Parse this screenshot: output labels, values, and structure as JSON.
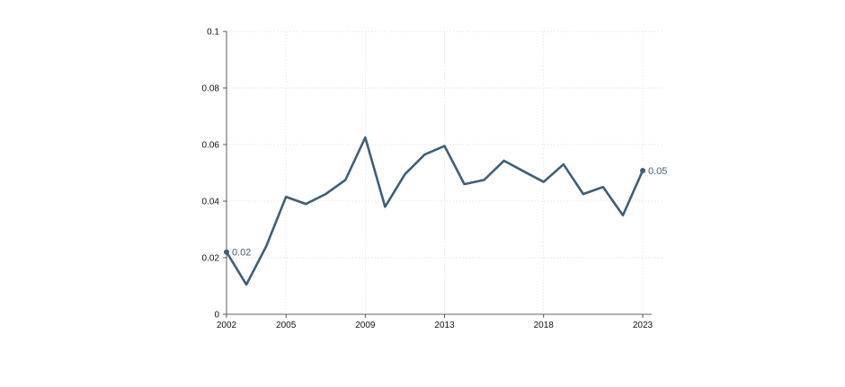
{
  "chart_data": {
    "type": "line",
    "title": "",
    "xlabel": "",
    "ylabel": "",
    "xlim": [
      2002,
      2023
    ],
    "ylim": [
      0,
      0.1
    ],
    "grid": true,
    "legend": "none",
    "x_ticks": [
      2002,
      2005,
      2009,
      2013,
      2018,
      2023
    ],
    "x_tick_labels": [
      "2002",
      "2005",
      "2009",
      "2013",
      "2018",
      "2023"
    ],
    "y_ticks": [
      0,
      0.02,
      0.04,
      0.06,
      0.08,
      0.1
    ],
    "y_tick_labels": [
      "0",
      "0.02",
      "0.04",
      "0.06",
      "0.08",
      "0.1"
    ],
    "series": [
      {
        "color": "#3d5f78",
        "x": [
          2002,
          2003,
          2004,
          2005,
          2006,
          2007,
          2008,
          2009,
          2010,
          2011,
          2012,
          2013,
          2014,
          2015,
          2016,
          2017,
          2018,
          2019,
          2020,
          2021,
          2022,
          2023
        ],
        "values": [
          0.022,
          0.0105,
          0.024,
          0.0415,
          0.039,
          0.0425,
          0.0475,
          0.0625,
          0.038,
          0.0495,
          0.0565,
          0.0595,
          0.046,
          0.0475,
          0.0543,
          0.0505,
          0.0468,
          0.053,
          0.0425,
          0.045,
          0.035,
          0.0508
        ]
      }
    ],
    "annotations": [
      {
        "x": 2002,
        "y": 0.022,
        "text": "0.02"
      },
      {
        "x": 2023,
        "y": 0.0508,
        "text": "0.05"
      }
    ]
  }
}
